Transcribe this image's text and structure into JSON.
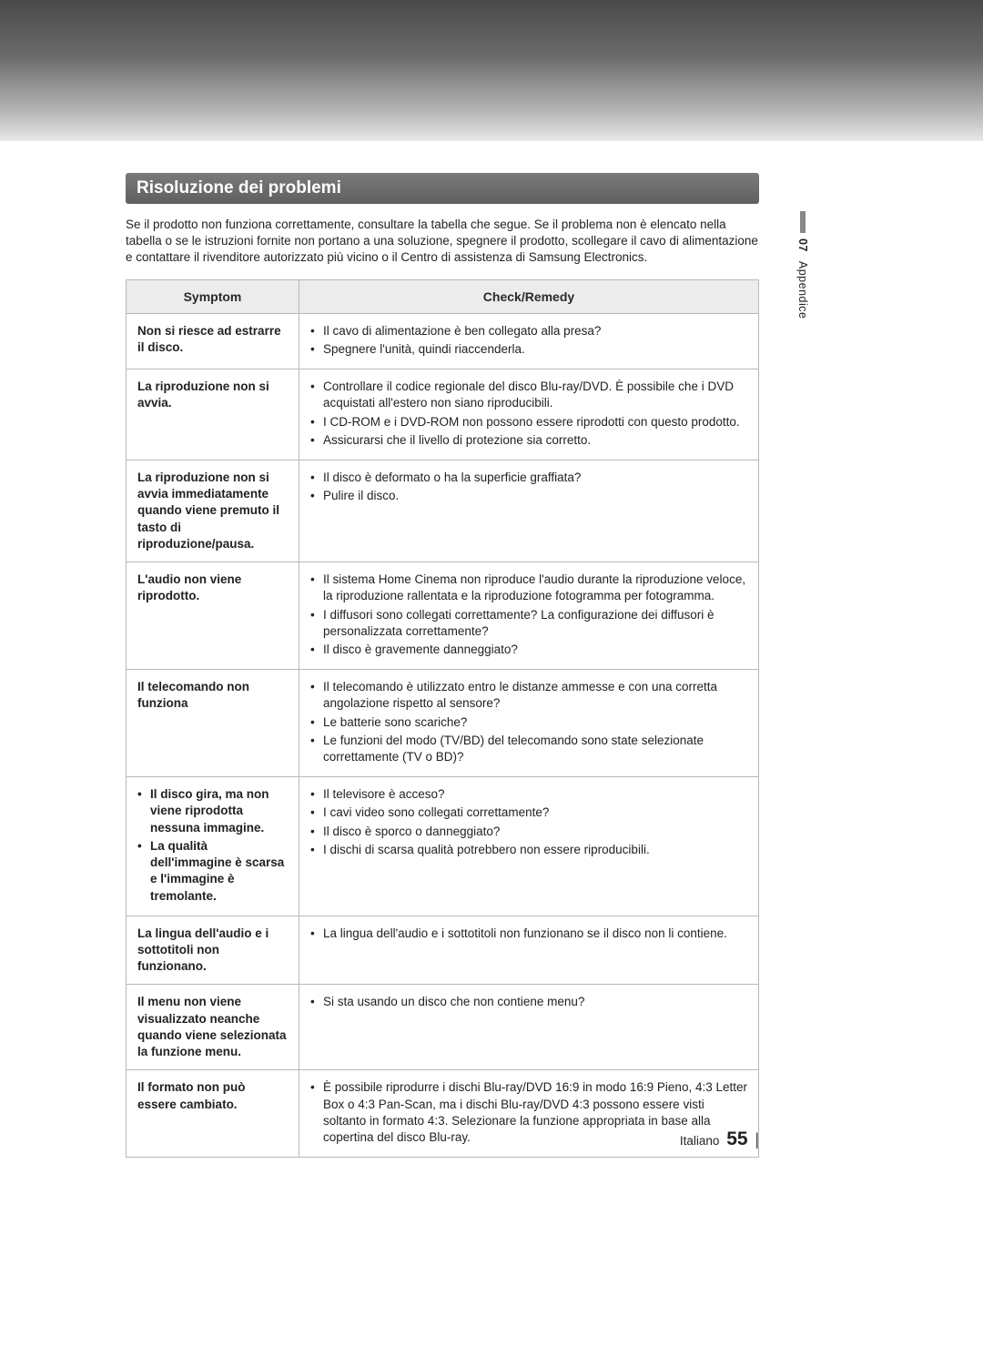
{
  "section_title": "Risoluzione dei problemi",
  "intro_text": "Se il prodotto non funziona correttamente, consultare la tabella che segue. Se il problema non è elencato nella tabella o se le istruzioni fornite non portano a una soluzione, spegnere il prodotto, scollegare il cavo di alimentazione e contattare il rivenditore autorizzato più vicino o il Centro di assistenza di Samsung Electronics.",
  "table": {
    "headers": {
      "symptom": "Symptom",
      "remedy": "Check/Remedy"
    },
    "rows": [
      {
        "symptom": "Non si riesce ad estrarre il disco.",
        "remedies": [
          "Il cavo di alimentazione è ben collegato alla presa?",
          "Spegnere l'unità, quindi riaccenderla."
        ]
      },
      {
        "symptom": "La riproduzione non si avvia.",
        "remedies": [
          "Controllare il codice regionale del disco Blu-ray/DVD. È possibile che i DVD acquistati all'estero non siano riproducibili.",
          "I CD-ROM e i DVD-ROM non possono essere riprodotti con questo prodotto.",
          "Assicurarsi che il livello di protezione sia corretto."
        ]
      },
      {
        "symptom": "La riproduzione non si avvia immediatamente quando viene premuto il tasto di riproduzione/pausa.",
        "remedies": [
          "Il disco è deformato o ha la superficie graffiata?",
          "Pulire il disco."
        ]
      },
      {
        "symptom": "L'audio non viene riprodotto.",
        "remedies": [
          "Il sistema Home Cinema non riproduce l'audio durante la riproduzione veloce, la riproduzione rallentata e la riproduzione fotogramma per fotogramma.",
          "I diffusori sono collegati correttamente? La configurazione dei diffusori è personalizzata correttamente?",
          "Il disco è gravemente danneggiato?"
        ]
      },
      {
        "symptom": "Il telecomando non funziona",
        "remedies": [
          "Il telecomando è utilizzato entro le distanze ammesse e con una corretta angolazione rispetto al sensore?",
          "Le batterie sono scariche?",
          "Le funzioni del modo (TV/BD) del telecomando sono state selezionate correttamente (TV o BD)?"
        ]
      },
      {
        "symptom_bullets": [
          "Il disco gira, ma non viene riprodotta nessuna immagine.",
          "La qualità dell'immagine è scarsa e l'immagine è tremolante."
        ],
        "remedies": [
          "Il televisore è acceso?",
          "I cavi video sono collegati correttamente?",
          "Il disco è sporco o danneggiato?",
          "I dischi di scarsa qualità potrebbero non essere riproducibili."
        ]
      },
      {
        "symptom": "La lingua dell'audio e i sottotitoli non funzionano.",
        "remedies": [
          "La lingua dell'audio e i sottotitoli non funzionano se il disco non li contiene."
        ]
      },
      {
        "symptom": "Il menu non viene visualizzato neanche quando viene selezionata la funzione menu.",
        "remedies": [
          "Si sta usando un disco che non contiene menu?"
        ]
      },
      {
        "symptom": "Il formato non può essere cambiato.",
        "remedies": [
          "È possibile riprodurre i dischi Blu-ray/DVD 16:9 in modo 16:9 Pieno, 4:3 Letter Box o 4:3 Pan-Scan, ma i dischi Blu-ray/DVD 4:3 possono essere visti soltanto in formato 4:3. Selezionare la funzione appropriata in base alla copertina del disco Blu-ray."
        ]
      }
    ]
  },
  "side": {
    "section_number": "07",
    "section_name": "Appendice"
  },
  "footer": {
    "lang": "Italiano",
    "page": "55"
  },
  "colors": {
    "header_bg_top": "#7a7a7a",
    "header_bg_bottom": "#5f5f5f",
    "header_text": "#ffffff",
    "border": "#b8b8b8",
    "th_bg": "#ececec",
    "text": "#222222"
  }
}
